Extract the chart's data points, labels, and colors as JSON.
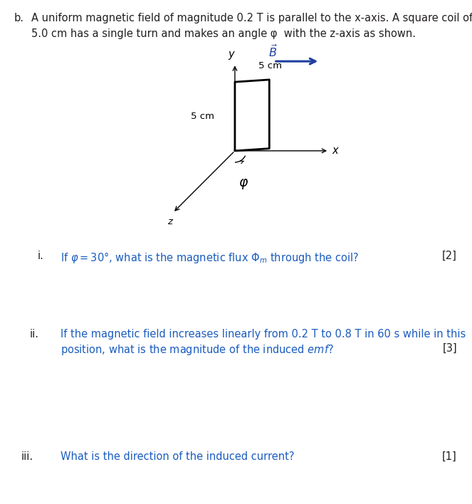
{
  "background_color": "#ffffff",
  "header_b": "b.",
  "header_line1": "A uniform magnetic field of magnitude 0.2 T is parallel to the x-axis. A square coil of side",
  "header_line2": "5.0 cm has a single turn and makes an angle φ  with the z-axis as shown.",
  "question_i_label": "i.",
  "question_i_text": "If φ = 30°, what is the magnetic flux Φ$_m$ through the coil?",
  "question_i_mark": "[2]",
  "question_ii_label": "ii.",
  "question_ii_line1": "If the magnetic field increases linearly from 0.2 T to 0.8 T in 60 s while in this",
  "question_ii_line2": "position, what is the magnitude of the induced emf?",
  "question_ii_mark": "[3]",
  "question_iii_label": "iii.",
  "question_iii_text": "What is the direction of the induced current?",
  "question_iii_mark": "[1]",
  "text_color_black": "#231f20",
  "text_color_blue": "#1a5cbf",
  "axis_color": "#000000",
  "coil_color": "#000000",
  "B_arrow_color": "#1e3fa0",
  "B_label_color": "#1e3fa0",
  "font_size": 10.5,
  "font_size_small": 9.5
}
